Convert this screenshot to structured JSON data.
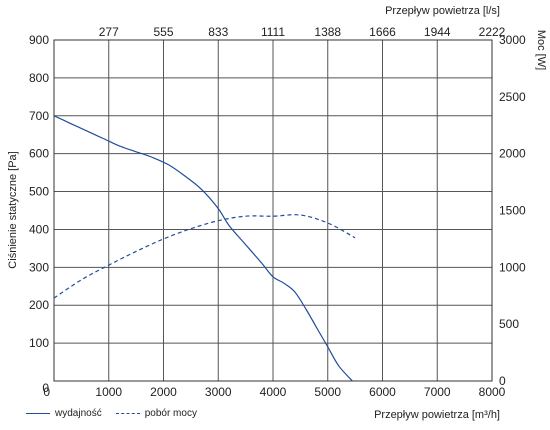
{
  "chart_data": {
    "type": "line",
    "xlabel_bottom": "Przepływ powietrza [m³/h]",
    "xlabel_top": "Przepływ powietrza [l/s]",
    "ylabel_left": "Ciśnienie statyczne [Pa]",
    "ylabel_right": "Moc [W]",
    "xlim": [
      0,
      8000
    ],
    "ylim_left": [
      0,
      900
    ],
    "ylim_right": [
      0,
      3000
    ],
    "x_ticks": [
      "0",
      "1000",
      "2000",
      "3000",
      "4000",
      "5000",
      "6000",
      "7000",
      "8000"
    ],
    "x_top_ticks": [
      "277",
      "555",
      "833",
      "1111",
      "1388",
      "1666",
      "1944",
      "2222"
    ],
    "y_left_ticks": [
      "0",
      "100",
      "200",
      "300",
      "400",
      "500",
      "600",
      "700",
      "800",
      "900"
    ],
    "y_right_ticks": [
      "0",
      "500",
      "1000",
      "1500",
      "2000",
      "2500",
      "3000"
    ],
    "grid": true,
    "series": [
      {
        "name": "wydajność",
        "axis": "left",
        "style": "solid",
        "color": "#1f4e9c",
        "x": [
          0,
          300,
          600,
          900,
          1200,
          1500,
          1800,
          2100,
          2400,
          2700,
          3000,
          3200,
          3500,
          3800,
          4000,
          4200,
          4400,
          4600,
          4800,
          5000,
          5200,
          5450
        ],
        "y": [
          700,
          680,
          660,
          640,
          620,
          605,
          590,
          570,
          540,
          505,
          455,
          410,
          360,
          310,
          275,
          258,
          235,
          190,
          140,
          90,
          40,
          0
        ]
      },
      {
        "name": "pobór mocy",
        "axis": "right",
        "style": "dashed",
        "color": "#1f4e9c",
        "x": [
          0,
          500,
          1000,
          1500,
          2000,
          2500,
          3000,
          3500,
          4000,
          4500,
          5000,
          5500
        ],
        "y": [
          730,
          890,
          1020,
          1140,
          1250,
          1340,
          1410,
          1450,
          1450,
          1460,
          1390,
          1260
        ]
      }
    ]
  }
}
